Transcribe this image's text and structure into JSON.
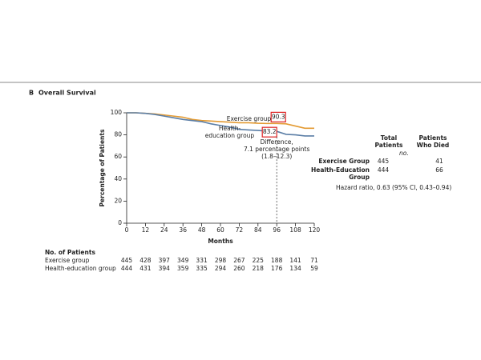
{
  "panel_label": "B",
  "chart_data": {
    "type": "line",
    "title": "Overall Survival",
    "x": [
      0,
      6,
      12,
      18,
      24,
      30,
      36,
      42,
      48,
      54,
      60,
      66,
      72,
      78,
      84,
      90,
      96,
      102,
      108,
      114,
      120
    ],
    "series": [
      {
        "name": "Exercise group",
        "color": "#e39a32",
        "values": [
          100,
          100,
          99.5,
          99,
          98,
          97,
          96,
          94,
          93,
          92.5,
          92,
          91.5,
          91,
          91,
          90.5,
          90.3,
          90.3,
          90,
          88,
          86,
          86
        ]
      },
      {
        "name": "Health-education group",
        "color": "#5b7ea6",
        "values": [
          100,
          100,
          99.5,
          98.5,
          97,
          95.5,
          94,
          93,
          92,
          90,
          88.5,
          87,
          85,
          84.5,
          84,
          83.5,
          83.2,
          80.5,
          80,
          79,
          79
        ]
      }
    ],
    "xlabel": "Months",
    "ylabel": "Percentage of Patients",
    "xlim": [
      0,
      120
    ],
    "ylim": [
      0,
      100
    ],
    "xticks": [
      0,
      12,
      24,
      36,
      48,
      60,
      72,
      84,
      96,
      108,
      120
    ],
    "yticks": [
      0,
      20,
      40,
      60,
      80,
      100
    ],
    "annotations": [
      {
        "x": 96,
        "value": 90.3
      },
      {
        "x": 96,
        "value": 83.2
      }
    ],
    "difference_label": [
      "Difference,",
      "7.1 percentage points",
      "(1.8–12.3)"
    ]
  },
  "risk_table": {
    "title": "No. of Patients",
    "rows": [
      {
        "name": "Exercise group",
        "values": [
          445,
          428,
          397,
          349,
          331,
          298,
          267,
          225,
          188,
          141,
          71
        ]
      },
      {
        "name": "Health-education group",
        "values": [
          444,
          431,
          394,
          359,
          335,
          294,
          260,
          218,
          176,
          134,
          59
        ]
      }
    ]
  },
  "summary_table": {
    "headers": [
      "Total Patients",
      "Patients Who Died"
    ],
    "unit": "no.",
    "rows": [
      {
        "name": "Exercise Group",
        "values": [
          445,
          41
        ]
      },
      {
        "name": "Health-Education Group",
        "values": [
          444,
          66
        ]
      }
    ],
    "note": "Hazard ratio, 0.63 (95% CI, 0.43–0.94)"
  }
}
